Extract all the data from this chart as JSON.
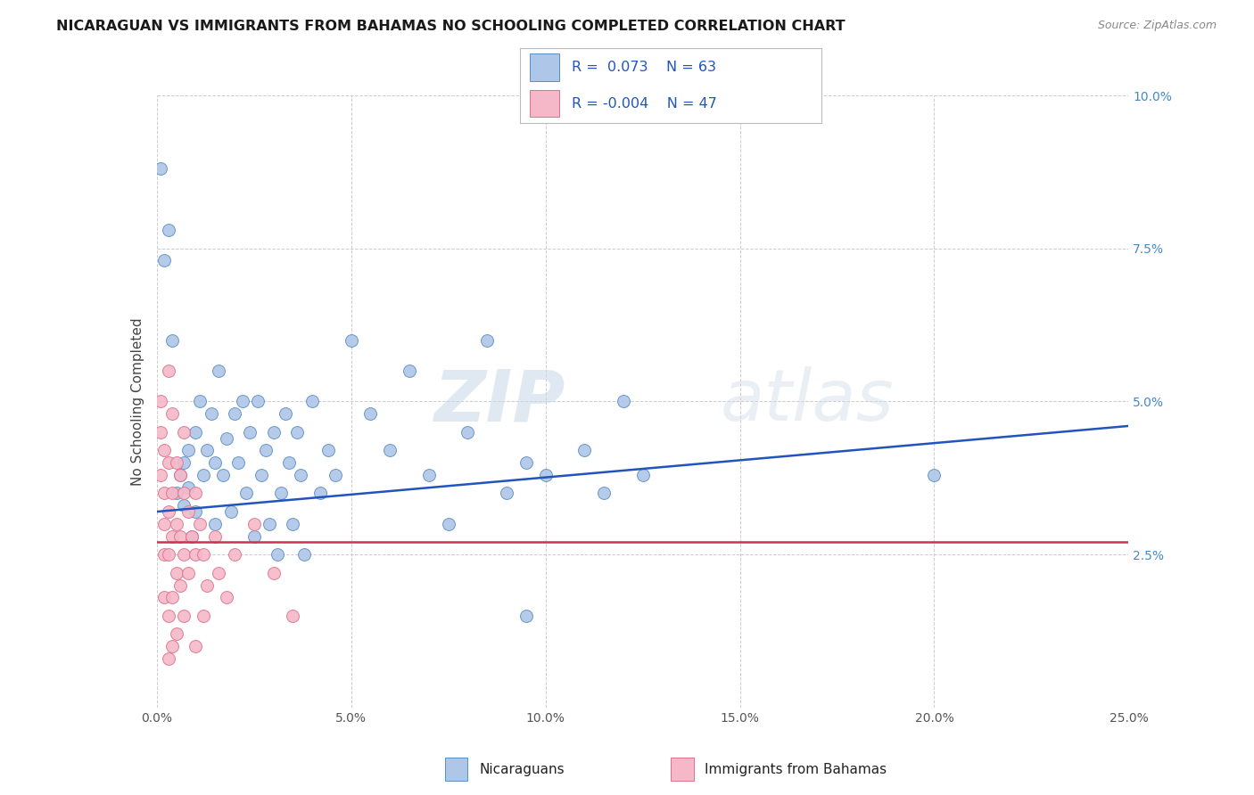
{
  "title": "NICARAGUAN VS IMMIGRANTS FROM BAHAMAS NO SCHOOLING COMPLETED CORRELATION CHART",
  "source": "Source: ZipAtlas.com",
  "ylabel": "No Schooling Completed",
  "xlim": [
    0.0,
    0.25
  ],
  "ylim": [
    0.0,
    0.1
  ],
  "yticks": [
    0.0,
    0.025,
    0.05,
    0.075,
    0.1
  ],
  "ytick_labels": [
    "",
    "2.5%",
    "5.0%",
    "7.5%",
    "10.0%"
  ],
  "xticks": [
    0.0,
    0.05,
    0.1,
    0.15,
    0.2,
    0.25
  ],
  "xtick_labels": [
    "0.0%",
    "5.0%",
    "10.0%",
    "15.0%",
    "20.0%",
    "25.0%"
  ],
  "watermark_zip": "ZIP",
  "watermark_atlas": "atlas",
  "blue_color": "#aec6e8",
  "pink_color": "#f4b8c8",
  "blue_edge_color": "#5b8ec4",
  "pink_edge_color": "#e0708a",
  "blue_line_color": "#2255bb",
  "pink_line_color": "#cc3355",
  "grid_color": "#cccccc",
  "legend_box_color": "#dddddd",
  "blue_r_text": "R =  0.073",
  "blue_n_text": "N = 63",
  "pink_r_text": "R = -0.004",
  "pink_n_text": "N = 47",
  "legend_text_color": "#2255bb",
  "blue_line_y0": 0.032,
  "blue_line_y1": 0.046,
  "pink_line_y0": 0.027,
  "pink_line_y1": 0.027,
  "blue_scatter": [
    [
      0.001,
      0.088
    ],
    [
      0.002,
      0.073
    ],
    [
      0.003,
      0.078
    ],
    [
      0.004,
      0.06
    ],
    [
      0.005,
      0.035
    ],
    [
      0.006,
      0.038
    ],
    [
      0.007,
      0.04
    ],
    [
      0.007,
      0.033
    ],
    [
      0.008,
      0.042
    ],
    [
      0.008,
      0.036
    ],
    [
      0.009,
      0.028
    ],
    [
      0.01,
      0.045
    ],
    [
      0.01,
      0.032
    ],
    [
      0.011,
      0.05
    ],
    [
      0.012,
      0.038
    ],
    [
      0.013,
      0.042
    ],
    [
      0.014,
      0.048
    ],
    [
      0.015,
      0.04
    ],
    [
      0.015,
      0.03
    ],
    [
      0.016,
      0.055
    ],
    [
      0.017,
      0.038
    ],
    [
      0.018,
      0.044
    ],
    [
      0.019,
      0.032
    ],
    [
      0.02,
      0.048
    ],
    [
      0.021,
      0.04
    ],
    [
      0.022,
      0.05
    ],
    [
      0.023,
      0.035
    ],
    [
      0.024,
      0.045
    ],
    [
      0.025,
      0.028
    ],
    [
      0.026,
      0.05
    ],
    [
      0.027,
      0.038
    ],
    [
      0.028,
      0.042
    ],
    [
      0.029,
      0.03
    ],
    [
      0.03,
      0.045
    ],
    [
      0.031,
      0.025
    ],
    [
      0.032,
      0.035
    ],
    [
      0.033,
      0.048
    ],
    [
      0.034,
      0.04
    ],
    [
      0.035,
      0.03
    ],
    [
      0.036,
      0.045
    ],
    [
      0.037,
      0.038
    ],
    [
      0.038,
      0.025
    ],
    [
      0.04,
      0.05
    ],
    [
      0.042,
      0.035
    ],
    [
      0.044,
      0.042
    ],
    [
      0.046,
      0.038
    ],
    [
      0.05,
      0.06
    ],
    [
      0.055,
      0.048
    ],
    [
      0.06,
      0.042
    ],
    [
      0.065,
      0.055
    ],
    [
      0.07,
      0.038
    ],
    [
      0.075,
      0.03
    ],
    [
      0.08,
      0.045
    ],
    [
      0.085,
      0.06
    ],
    [
      0.09,
      0.035
    ],
    [
      0.095,
      0.04
    ],
    [
      0.1,
      0.038
    ],
    [
      0.11,
      0.042
    ],
    [
      0.115,
      0.035
    ],
    [
      0.12,
      0.05
    ],
    [
      0.125,
      0.038
    ],
    [
      0.2,
      0.038
    ],
    [
      0.095,
      0.015
    ]
  ],
  "pink_scatter": [
    [
      0.001,
      0.05
    ],
    [
      0.001,
      0.045
    ],
    [
      0.001,
      0.038
    ],
    [
      0.002,
      0.042
    ],
    [
      0.002,
      0.035
    ],
    [
      0.002,
      0.03
    ],
    [
      0.002,
      0.025
    ],
    [
      0.002,
      0.018
    ],
    [
      0.003,
      0.055
    ],
    [
      0.003,
      0.04
    ],
    [
      0.003,
      0.032
    ],
    [
      0.003,
      0.025
    ],
    [
      0.003,
      0.015
    ],
    [
      0.003,
      0.008
    ],
    [
      0.004,
      0.048
    ],
    [
      0.004,
      0.035
    ],
    [
      0.004,
      0.028
    ],
    [
      0.004,
      0.018
    ],
    [
      0.004,
      0.01
    ],
    [
      0.005,
      0.04
    ],
    [
      0.005,
      0.03
    ],
    [
      0.005,
      0.022
    ],
    [
      0.005,
      0.012
    ],
    [
      0.006,
      0.038
    ],
    [
      0.006,
      0.028
    ],
    [
      0.006,
      0.02
    ],
    [
      0.007,
      0.045
    ],
    [
      0.007,
      0.035
    ],
    [
      0.007,
      0.025
    ],
    [
      0.007,
      0.015
    ],
    [
      0.008,
      0.032
    ],
    [
      0.008,
      0.022
    ],
    [
      0.009,
      0.028
    ],
    [
      0.01,
      0.035
    ],
    [
      0.01,
      0.025
    ],
    [
      0.011,
      0.03
    ],
    [
      0.012,
      0.025
    ],
    [
      0.013,
      0.02
    ],
    [
      0.015,
      0.028
    ],
    [
      0.016,
      0.022
    ],
    [
      0.018,
      0.018
    ],
    [
      0.02,
      0.025
    ],
    [
      0.025,
      0.03
    ],
    [
      0.03,
      0.022
    ],
    [
      0.035,
      0.015
    ],
    [
      0.012,
      0.015
    ],
    [
      0.01,
      0.01
    ]
  ]
}
